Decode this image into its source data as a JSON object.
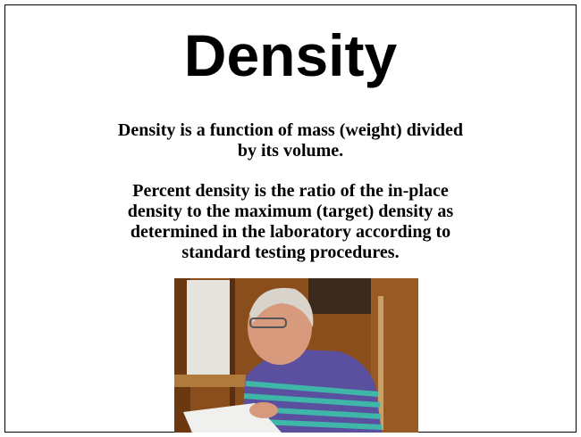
{
  "slide": {
    "title": "Density",
    "paragraphs": [
      [
        "Density is a function of mass (weight) divided",
        "by its volume."
      ],
      [
        "Percent density is the ratio of the in-place",
        "density to the maximum (target) density as",
        "determined in the laboratory according to",
        "standard testing procedures."
      ]
    ]
  }
}
